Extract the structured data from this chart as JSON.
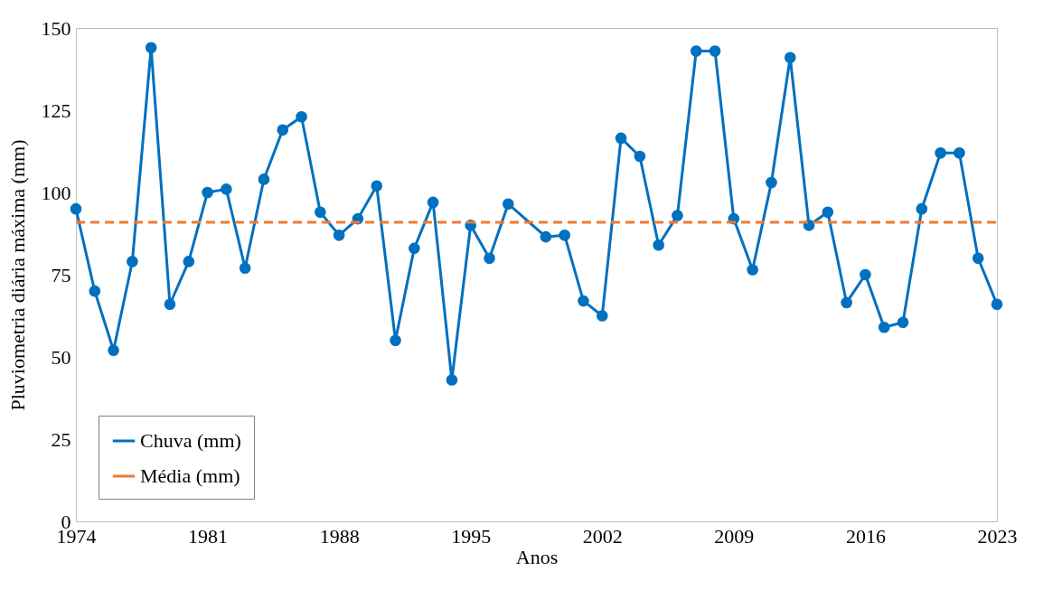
{
  "chart_data": {
    "type": "line",
    "xlabel": "Anos",
    "ylabel": "Pluviometria diária máxima (mm)",
    "xlim": [
      1974,
      2023
    ],
    "xticks": [
      1974,
      1981,
      1988,
      1995,
      2002,
      2009,
      2016,
      2023
    ],
    "ylim": [
      0,
      150
    ],
    "yticks": [
      0,
      25,
      50,
      75,
      100,
      125,
      150
    ],
    "legend": "bottom left",
    "grid": false,
    "series": [
      {
        "name": "Chuva (mm)",
        "color": "#0070c0",
        "marker": "circle",
        "line_style": "solid",
        "x": [
          1974,
          1975,
          1976,
          1977,
          1978,
          1979,
          1980,
          1981,
          1982,
          1983,
          1984,
          1985,
          1986,
          1987,
          1988,
          1989,
          1990,
          1991,
          1992,
          1993,
          1994,
          1995,
          1996,
          1997,
          1999,
          2000,
          2001,
          2002,
          2003,
          2004,
          2005,
          2006,
          2007,
          2008,
          2009,
          2010,
          2011,
          2012,
          2013,
          2014,
          2015,
          2016,
          2017,
          2018,
          2019,
          2020,
          2021,
          2022,
          2023
        ],
        "values": [
          95,
          70,
          52,
          79,
          144,
          66,
          79,
          100,
          101,
          77,
          104,
          119,
          123,
          94,
          87,
          92,
          102,
          55,
          83,
          97,
          43,
          90,
          80,
          96.5,
          86.5,
          87,
          67,
          62.5,
          116.5,
          111,
          84,
          93,
          143,
          143,
          92,
          76.5,
          103,
          141,
          90,
          94,
          66.5,
          75,
          59,
          60.5,
          95,
          112,
          112,
          80,
          66
        ]
      },
      {
        "name": "Média (mm)",
        "color": "#ed7d31",
        "marker": "none",
        "line_style": "dashed",
        "x": [
          1974,
          2023
        ],
        "values": [
          90.9,
          90.9
        ]
      }
    ]
  }
}
